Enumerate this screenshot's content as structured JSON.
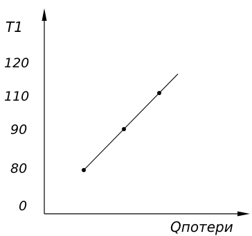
{
  "chart_data": {
    "type": "line",
    "title": "",
    "ylabel": "T1",
    "xlabel": "Qпотери",
    "y_tick_labels": [
      "0",
      "80",
      "90",
      "110",
      "120"
    ],
    "series": [
      {
        "points": [
          {
            "y": 80
          },
          {
            "y": 90
          },
          {
            "y": 110
          }
        ]
      }
    ],
    "grid": false,
    "legend": "none"
  }
}
